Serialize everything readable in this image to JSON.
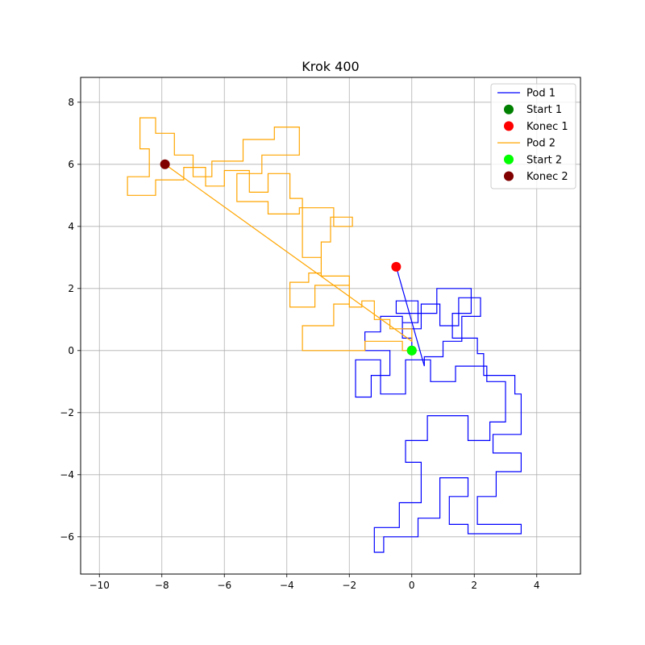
{
  "chart_data": {
    "type": "line",
    "title": "Krok 400",
    "xlabel": "",
    "ylabel": "",
    "xlim": [
      -10.6,
      5.4
    ],
    "ylim": [
      -7.2,
      8.8
    ],
    "xticks": [
      -10,
      -8,
      -6,
      -4,
      -2,
      0,
      2,
      4
    ],
    "yticks": [
      -6,
      -4,
      -2,
      0,
      2,
      4,
      6,
      8
    ],
    "xtick_labels": [
      "−10",
      "−8",
      "−6",
      "−4",
      "−2",
      "0",
      "2",
      "4"
    ],
    "ytick_labels": [
      "−6",
      "−4",
      "−2",
      "0",
      "2",
      "4",
      "6",
      "8"
    ],
    "grid": true,
    "legend_position": "top-right",
    "series": [
      {
        "name": "Pod 1",
        "color": "#0000ff",
        "values": [
          [
            0,
            0
          ],
          [
            0,
            0.4
          ],
          [
            -0.3,
            0.4
          ],
          [
            -0.3,
            0.9
          ],
          [
            0.2,
            0.9
          ],
          [
            0.2,
            1.6
          ],
          [
            -0.5,
            1.6
          ],
          [
            -0.5,
            1.2
          ],
          [
            0.8,
            1.2
          ],
          [
            0.8,
            2.0
          ],
          [
            1.9,
            2.0
          ],
          [
            1.9,
            1.2
          ],
          [
            1.3,
            1.2
          ],
          [
            1.3,
            0.4
          ],
          [
            2.1,
            0.4
          ],
          [
            2.1,
            -0.1
          ],
          [
            2.3,
            -0.1
          ],
          [
            2.3,
            -0.8
          ],
          [
            3.3,
            -0.8
          ],
          [
            3.3,
            -1.4
          ],
          [
            3.5,
            -1.4
          ],
          [
            3.5,
            -2.7
          ],
          [
            2.6,
            -2.7
          ],
          [
            2.6,
            -3.3
          ],
          [
            3.5,
            -3.3
          ],
          [
            3.5,
            -3.9
          ],
          [
            2.7,
            -3.9
          ],
          [
            2.7,
            -4.7
          ],
          [
            2.1,
            -4.7
          ],
          [
            2.1,
            -5.6
          ],
          [
            3.5,
            -5.6
          ],
          [
            3.5,
            -5.9
          ],
          [
            1.8,
            -5.9
          ],
          [
            1.8,
            -5.6
          ],
          [
            1.2,
            -5.6
          ],
          [
            1.2,
            -4.7
          ],
          [
            1.8,
            -4.7
          ],
          [
            1.8,
            -4.1
          ],
          [
            0.9,
            -4.1
          ],
          [
            0.9,
            -5.4
          ],
          [
            0.2,
            -5.4
          ],
          [
            0.2,
            -6.0
          ],
          [
            -0.9,
            -6.0
          ],
          [
            -0.9,
            -6.5
          ],
          [
            -1.2,
            -6.5
          ],
          [
            -1.2,
            -5.7
          ],
          [
            -0.4,
            -5.7
          ],
          [
            -0.4,
            -4.9
          ],
          [
            0.3,
            -4.9
          ],
          [
            0.3,
            -3.6
          ],
          [
            -0.2,
            -3.6
          ],
          [
            -0.2,
            -2.9
          ],
          [
            0.5,
            -2.9
          ],
          [
            0.5,
            -2.1
          ],
          [
            1.8,
            -2.1
          ],
          [
            1.8,
            -2.9
          ],
          [
            2.5,
            -2.9
          ],
          [
            2.5,
            -2.3
          ],
          [
            3.0,
            -2.3
          ],
          [
            3.0,
            -1.0
          ],
          [
            2.4,
            -1.0
          ],
          [
            2.4,
            -0.5
          ],
          [
            1.4,
            -0.5
          ],
          [
            1.4,
            -1.0
          ],
          [
            0.6,
            -1.0
          ],
          [
            0.6,
            -0.3
          ],
          [
            -0.2,
            -0.3
          ],
          [
            -0.2,
            -1.4
          ],
          [
            -1.0,
            -1.4
          ],
          [
            -1.0,
            -0.3
          ],
          [
            -1.8,
            -0.3
          ],
          [
            -1.8,
            -1.5
          ],
          [
            -1.3,
            -1.5
          ],
          [
            -1.3,
            -0.8
          ],
          [
            -0.7,
            -0.8
          ],
          [
            -0.7,
            0.0
          ],
          [
            -1.5,
            0.0
          ],
          [
            -1.5,
            0.6
          ],
          [
            -1.0,
            0.6
          ],
          [
            -1.0,
            1.1
          ],
          [
            -0.3,
            1.1
          ],
          [
            -0.3,
            0.7
          ],
          [
            0.3,
            0.7
          ],
          [
            0.3,
            1.5
          ],
          [
            0.9,
            1.5
          ],
          [
            0.9,
            0.8
          ],
          [
            1.5,
            0.8
          ],
          [
            1.5,
            1.7
          ],
          [
            2.2,
            1.7
          ],
          [
            2.2,
            1.1
          ],
          [
            1.6,
            1.1
          ],
          [
            1.6,
            0.3
          ],
          [
            1.0,
            0.3
          ],
          [
            1.0,
            -0.2
          ],
          [
            0.4,
            -0.2
          ],
          [
            0.4,
            -0.5
          ],
          [
            -0.5,
            2.7
          ]
        ]
      },
      {
        "name": "Pod 2",
        "color": "#ffa500",
        "values": [
          [
            0,
            0
          ],
          [
            -0.3,
            0
          ],
          [
            -0.3,
            0.3
          ],
          [
            -1.5,
            0.3
          ],
          [
            -1.5,
            0
          ],
          [
            -3.5,
            0
          ],
          [
            -3.5,
            0.8
          ],
          [
            -2.5,
            0.8
          ],
          [
            -2.5,
            1.5
          ],
          [
            -2.0,
            1.5
          ],
          [
            -2.0,
            2.1
          ],
          [
            -3.1,
            2.1
          ],
          [
            -3.1,
            1.4
          ],
          [
            -3.9,
            1.4
          ],
          [
            -3.9,
            2.2
          ],
          [
            -3.3,
            2.2
          ],
          [
            -3.3,
            2.5
          ],
          [
            -2.9,
            2.5
          ],
          [
            -2.9,
            3.5
          ],
          [
            -2.6,
            3.5
          ],
          [
            -2.6,
            4.3
          ],
          [
            -1.9,
            4.3
          ],
          [
            -1.9,
            4.0
          ],
          [
            -2.5,
            4.0
          ],
          [
            -2.5,
            4.6
          ],
          [
            -3.6,
            4.6
          ],
          [
            -3.6,
            4.4
          ],
          [
            -4.6,
            4.4
          ],
          [
            -4.6,
            4.8
          ],
          [
            -5.6,
            4.8
          ],
          [
            -5.6,
            5.7
          ],
          [
            -4.8,
            5.7
          ],
          [
            -4.8,
            6.3
          ],
          [
            -3.6,
            6.3
          ],
          [
            -3.6,
            7.2
          ],
          [
            -4.4,
            7.2
          ],
          [
            -4.4,
            6.8
          ],
          [
            -5.4,
            6.8
          ],
          [
            -5.4,
            6.1
          ],
          [
            -6.4,
            6.1
          ],
          [
            -6.4,
            5.6
          ],
          [
            -7.0,
            5.6
          ],
          [
            -7.0,
            6.3
          ],
          [
            -7.6,
            6.3
          ],
          [
            -7.6,
            7.0
          ],
          [
            -8.2,
            7.0
          ],
          [
            -8.2,
            7.5
          ],
          [
            -8.7,
            7.5
          ],
          [
            -8.7,
            6.5
          ],
          [
            -8.4,
            6.5
          ],
          [
            -8.4,
            5.6
          ],
          [
            -9.1,
            5.6
          ],
          [
            -9.1,
            5.0
          ],
          [
            -8.2,
            5.0
          ],
          [
            -8.2,
            5.5
          ],
          [
            -7.3,
            5.5
          ],
          [
            -7.3,
            5.9
          ],
          [
            -6.6,
            5.9
          ],
          [
            -6.6,
            5.3
          ],
          [
            -6.0,
            5.3
          ],
          [
            -6.0,
            5.8
          ],
          [
            -5.2,
            5.8
          ],
          [
            -5.2,
            5.1
          ],
          [
            -4.6,
            5.1
          ],
          [
            -4.6,
            5.7
          ],
          [
            -3.9,
            5.7
          ],
          [
            -3.9,
            4.9
          ],
          [
            -3.5,
            4.9
          ],
          [
            -3.5,
            3.0
          ],
          [
            -2.9,
            3.0
          ],
          [
            -2.9,
            2.4
          ],
          [
            -2.0,
            2.4
          ],
          [
            -2.0,
            1.4
          ],
          [
            -1.6,
            1.4
          ],
          [
            -1.6,
            1.6
          ],
          [
            -1.2,
            1.6
          ],
          [
            -1.2,
            1.0
          ],
          [
            -0.7,
            1.0
          ],
          [
            -0.7,
            0.7
          ],
          [
            0,
            0.7
          ],
          [
            0,
            0.3
          ],
          [
            -7.9,
            6.0
          ]
        ]
      }
    ],
    "markers": [
      {
        "label": "Start 1",
        "color": "#008000",
        "x": 0,
        "y": 0
      },
      {
        "label": "Konec 1",
        "color": "#ff0000",
        "x": -0.5,
        "y": 2.7
      },
      {
        "label": "Start 2",
        "color": "#00ff00",
        "x": 0,
        "y": 0
      },
      {
        "label": "Konec 2",
        "color": "#800000",
        "x": -7.9,
        "y": 6.0
      }
    ],
    "legend": [
      "Pod 1",
      "Start 1",
      "Konec 1",
      "Pod 2",
      "Start 2",
      "Konec 2"
    ]
  }
}
